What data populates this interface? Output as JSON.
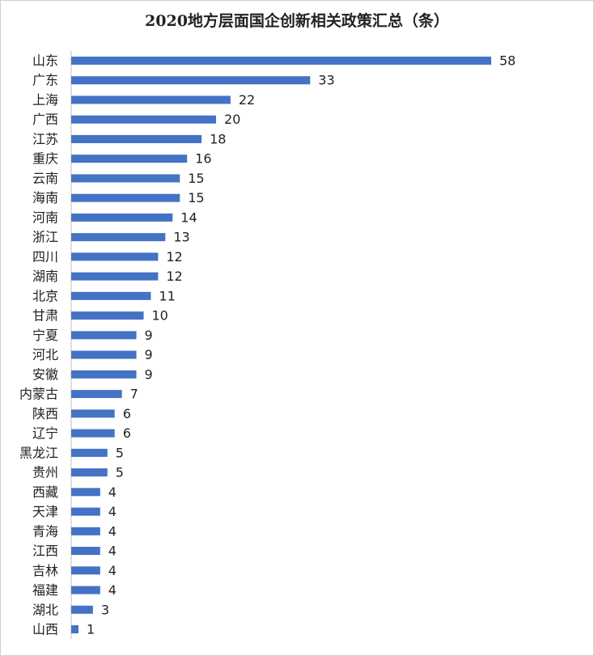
{
  "chart_data": {
    "type": "hbar",
    "title": "2020地方层面国企创新相关政策汇总（条）",
    "categories": [
      "山东",
      "广东",
      "上海",
      "广西",
      "江苏",
      "重庆",
      "云南",
      "海南",
      "河南",
      "浙江",
      "四川",
      "湖南",
      "北京",
      "甘肃",
      "宁夏",
      "河北",
      "安徽",
      "内蒙古",
      "陕西",
      "辽宁",
      "黑龙江",
      "贵州",
      "西藏",
      "天津",
      "青海",
      "江西",
      "吉林",
      "福建",
      "湖北",
      "山西"
    ],
    "values": [
      58,
      33,
      22,
      20,
      18,
      16,
      15,
      15,
      14,
      13,
      12,
      12,
      11,
      10,
      9,
      9,
      9,
      7,
      6,
      6,
      5,
      5,
      4,
      4,
      4,
      4,
      4,
      4,
      3,
      1
    ],
    "color": "#4472c4"
  }
}
